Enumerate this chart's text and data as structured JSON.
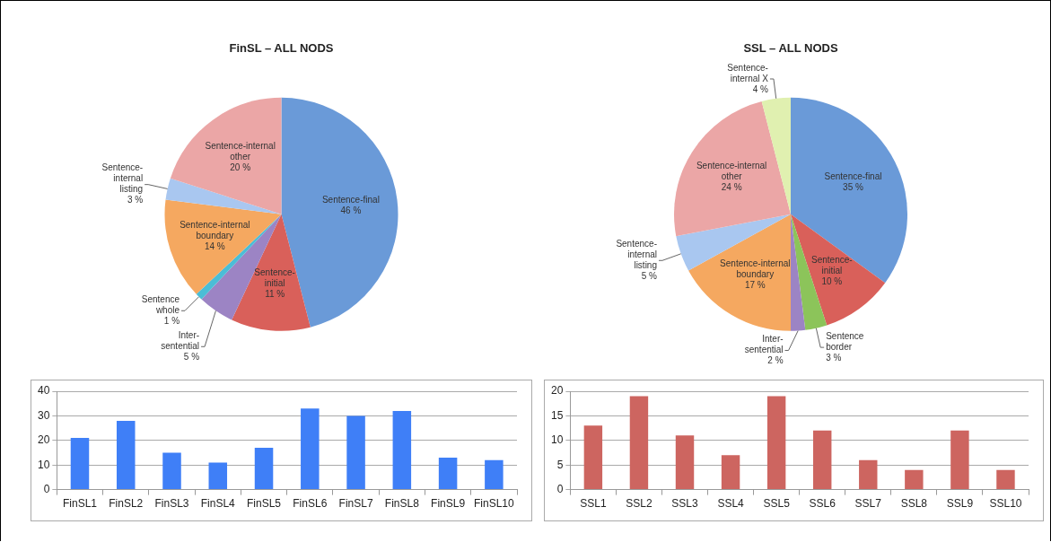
{
  "chart_data": [
    {
      "type": "pie",
      "title": "FinSL – ALL NODS",
      "categories": [
        "Sentence-final",
        "Sentence-initial",
        "Inter-sentential",
        "Sentence whole",
        "Sentence-internal boundary",
        "Sentence-internal listing",
        "Sentence-internal other"
      ],
      "values": [
        46,
        11,
        5,
        1,
        14,
        3,
        20
      ],
      "value_labels": [
        "46 %",
        "11 %",
        "5 %",
        "1 %",
        "14 %",
        "3 %",
        "20 %"
      ],
      "colors": [
        "#6a9ad8",
        "#d9605a",
        "#9c84c4",
        "#4bbdd6",
        "#f5a860",
        "#a9c7f0",
        "#eba6a6"
      ]
    },
    {
      "type": "pie",
      "title": "SSL – ALL NODS",
      "categories": [
        "Sentence-final",
        "Sentence-initial",
        "Sentence border",
        "Inter-sentential",
        "Sentence-internal boundary",
        "Sentence-internal listing",
        "Sentence-internal other",
        "Sentence-internal X"
      ],
      "values": [
        35,
        10,
        3,
        2,
        17,
        5,
        24,
        4
      ],
      "value_labels": [
        "35 %",
        "10 %",
        "3 %",
        "2 %",
        "17 %",
        "5 %",
        "24 %",
        "4 %"
      ],
      "colors": [
        "#6a9ad8",
        "#d9605a",
        "#8cc45a",
        "#9c84c4",
        "#f5a860",
        "#a9c7f0",
        "#eba6a6",
        "#e0f0b0"
      ]
    },
    {
      "type": "bar",
      "categories": [
        "FinSL1",
        "FinSL2",
        "FinSL3",
        "FinSL4",
        "FinSL5",
        "FinSL6",
        "FinSL7",
        "FinSL8",
        "FinSL9",
        "FinSL10"
      ],
      "values": [
        21,
        28,
        15,
        11,
        17,
        33,
        30,
        32,
        13,
        12
      ],
      "color": "#3f7ff7",
      "ylim": [
        0,
        40
      ],
      "yticks": [
        0,
        10,
        20,
        30,
        40
      ],
      "grid": "y"
    },
    {
      "type": "bar",
      "categories": [
        "SSL1",
        "SSL2",
        "SSL3",
        "SSL4",
        "SSL5",
        "SSL6",
        "SSL7",
        "SSL8",
        "SSL9",
        "SSL10"
      ],
      "values": [
        13,
        19,
        11,
        7,
        19,
        12,
        6,
        4,
        12,
        4
      ],
      "color": "#cd6560",
      "ylim": [
        0,
        20
      ],
      "yticks": [
        0,
        5,
        10,
        15,
        20
      ],
      "grid": "y"
    }
  ]
}
